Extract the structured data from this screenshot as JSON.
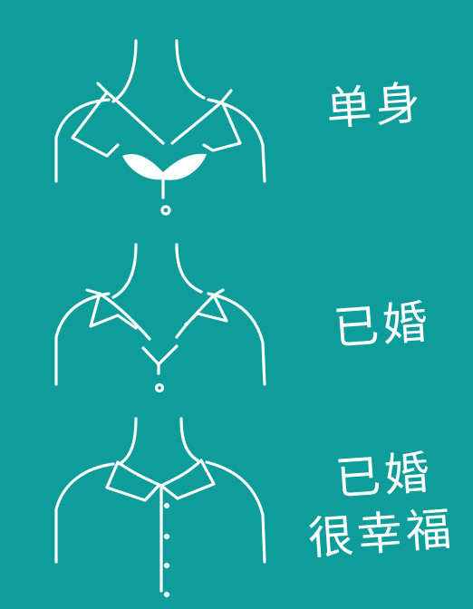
{
  "background_color": "#0f9d9b",
  "line_color": "#ffffff",
  "panels": [
    {
      "caption": "单身"
    },
    {
      "caption": "已婚"
    },
    {
      "caption_line1": "已婚",
      "caption_line2": "很幸福"
    }
  ]
}
